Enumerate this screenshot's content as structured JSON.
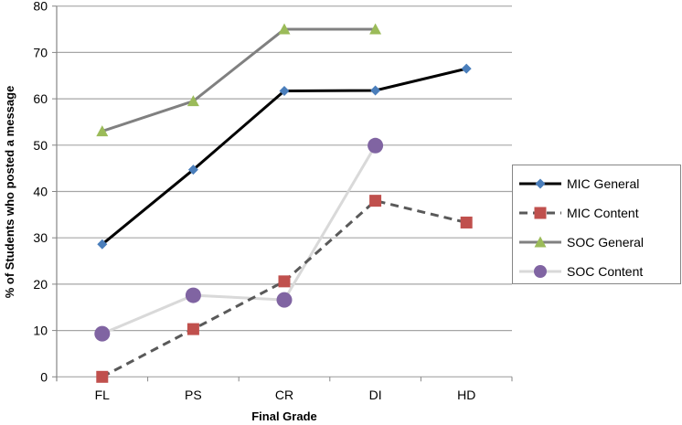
{
  "chart_data": {
    "type": "line",
    "title": "",
    "xlabel": "Final Grade",
    "ylabel": "% of Students who posted a message",
    "categories": [
      "FL",
      "PS",
      "CR",
      "DI",
      "HD"
    ],
    "ylim": [
      0,
      80
    ],
    "yticks": [
      0,
      10,
      20,
      30,
      40,
      50,
      60,
      70,
      80
    ],
    "grid": true,
    "legend_position": "right",
    "series": [
      {
        "name": "MIC General",
        "values": [
          28.6,
          44.7,
          61.7,
          61.8,
          66.5
        ],
        "color": "#000000",
        "marker": "diamond",
        "marker_color": "#4a7ebb",
        "dash": false,
        "line_color": "#000000"
      },
      {
        "name": "MIC Content",
        "values": [
          0,
          10.3,
          20.6,
          38.0,
          33.3
        ],
        "color": "#c0504d",
        "marker": "square",
        "marker_color": "#c0504d",
        "dash": true,
        "line_color": "#595959"
      },
      {
        "name": "SOC General",
        "values": [
          53.0,
          59.5,
          75.0,
          75.0,
          null
        ],
        "color": "#9bbb59",
        "marker": "triangle",
        "marker_color": "#9bbb59",
        "dash": false,
        "line_color": "#808080"
      },
      {
        "name": "SOC Content",
        "values": [
          9.3,
          17.6,
          16.6,
          49.9,
          null
        ],
        "color": "#8064a2",
        "marker": "circle",
        "marker_color": "#8064a2",
        "dash": false,
        "line_color": "#d9d9d9"
      }
    ]
  }
}
